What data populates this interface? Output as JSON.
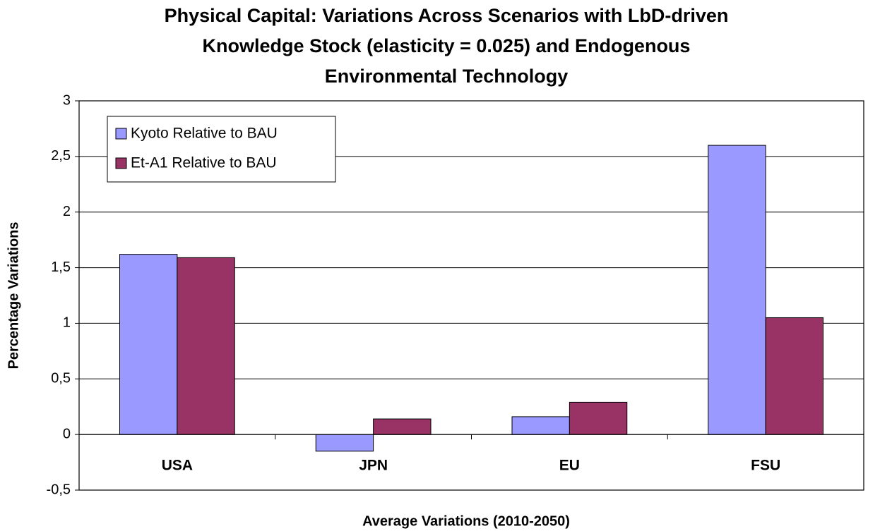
{
  "chart_data": {
    "type": "bar",
    "title": [
      "Physical Capital: Variations Across Scenarios with LbD-driven",
      "Knowledge Stock (elasticity = 0.025) and Endogenous",
      "Environmental Technology"
    ],
    "x_label": "Average Variations (2010-2050)",
    "y_label": "Percentage Variations",
    "categories": [
      "USA",
      "JPN",
      "EU",
      "FSU"
    ],
    "series": [
      {
        "name": "Kyoto Relative to BAU",
        "color": "#9999ff",
        "values": [
          1.62,
          -0.15,
          0.16,
          2.6
        ]
      },
      {
        "name": "Et-A1 Relative to BAU",
        "color": "#993366",
        "values": [
          1.59,
          0.14,
          0.29,
          1.05
        ]
      }
    ],
    "ylim": [
      -0.5,
      3
    ],
    "yticks": [
      {
        "value": -0.5,
        "label": "-0,5"
      },
      0,
      {
        "value": 0.5,
        "label": "0,5"
      },
      1,
      {
        "value": 1.5,
        "label": "1,5"
      },
      2,
      {
        "value": 2.5,
        "label": "2,5"
      },
      3
    ],
    "grid": true,
    "legend": "top-left"
  }
}
